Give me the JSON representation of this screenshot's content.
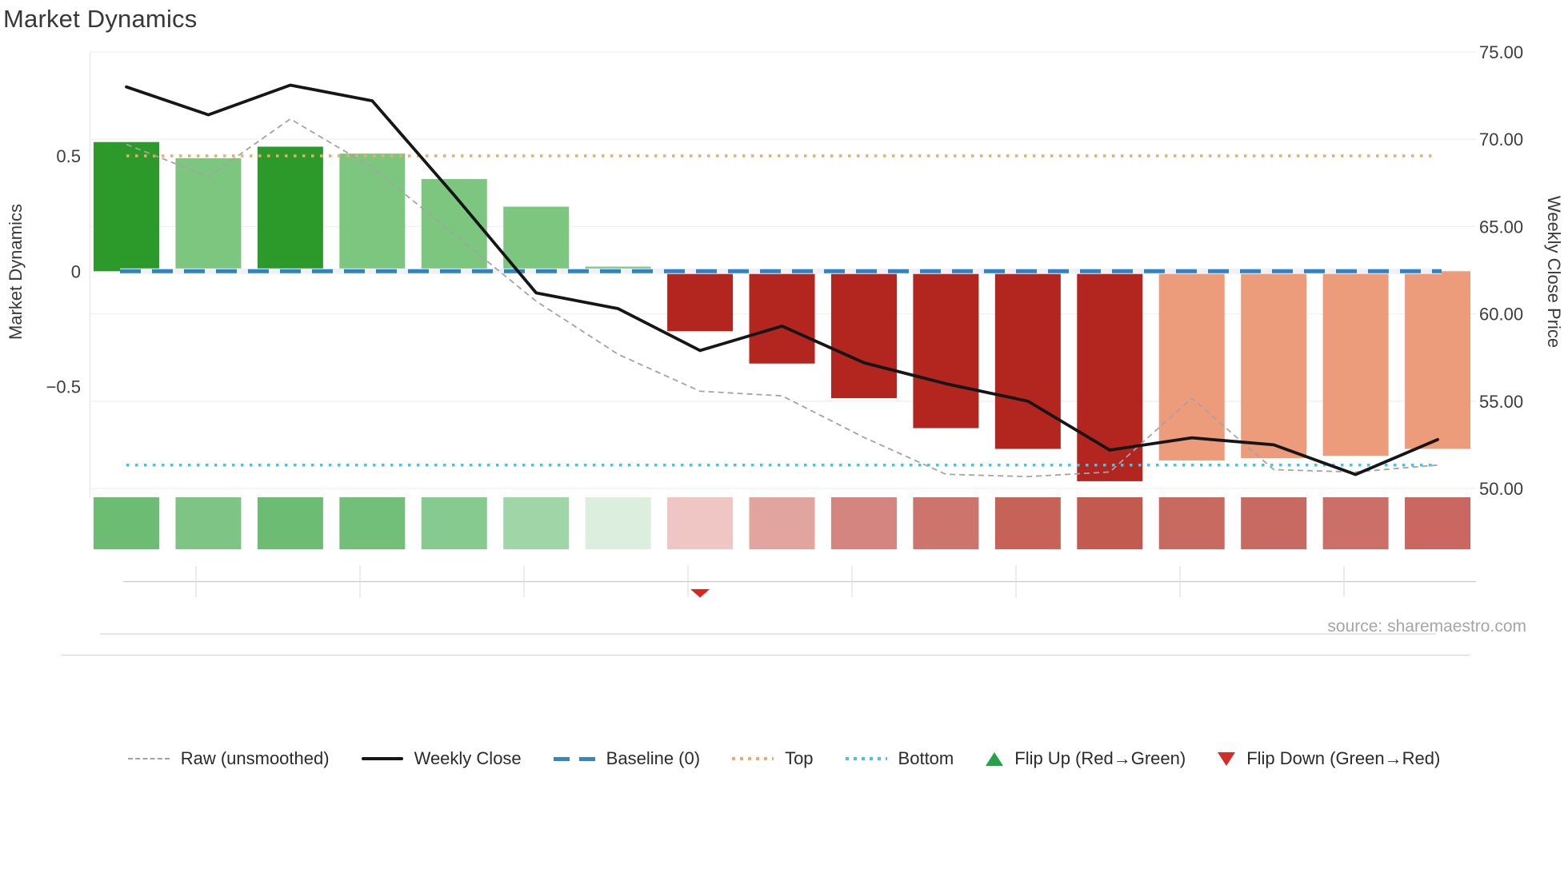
{
  "title": "Market Dynamics",
  "source": "source: sharemaestro.com",
  "axes": {
    "left": {
      "title": "Market Dynamics",
      "ticks": [
        {
          "label": "0.5",
          "value": 0.5
        },
        {
          "label": "0",
          "value": 0
        },
        {
          "label": "−0.5",
          "value": -0.5
        }
      ]
    },
    "right": {
      "title": "Weekly Close Price",
      "ticks": [
        {
          "label": "75.00",
          "value": 75
        },
        {
          "label": "70.00",
          "value": 70
        },
        {
          "label": "65.00",
          "value": 65
        },
        {
          "label": "60.00",
          "value": 60
        },
        {
          "label": "55.00",
          "value": 55
        },
        {
          "label": "50.00",
          "value": 50
        }
      ]
    }
  },
  "chart_data": {
    "type": "bar",
    "subtype": "bar-line combo with dual y-axes, heatmap strip and event markers",
    "x": [
      1,
      2,
      3,
      4,
      5,
      6,
      7,
      8,
      9,
      10,
      11,
      12,
      13,
      14,
      15,
      16,
      17
    ],
    "x_labels": [],
    "title": "Market Dynamics",
    "xlabel": "",
    "ylabel_left": "Market Dynamics",
    "ylabel_right": "Weekly Close Price",
    "left_ylim": [
      -0.95,
      0.95
    ],
    "right_ylim": [
      49.8,
      75.2
    ],
    "grid": "faint horizontal lines at right-axis ticks",
    "legend_position": "bottom",
    "bars": {
      "name": "Market Dynamics (bars)",
      "axis": "left",
      "values": [
        0.56,
        0.49,
        0.54,
        0.51,
        0.4,
        0.28,
        0.02,
        -0.26,
        -0.4,
        -0.55,
        -0.68,
        -0.77,
        -0.91,
        -0.82,
        -0.81,
        -0.8,
        -0.77
      ],
      "tones": [
        "dark-green",
        "light-green",
        "dark-green",
        "light-green",
        "light-green",
        "light-green",
        "light-green",
        "dark-red",
        "dark-red",
        "dark-red",
        "dark-red",
        "dark-red",
        "dark-red",
        "salmon",
        "salmon",
        "salmon",
        "salmon"
      ]
    },
    "series": [
      {
        "name": "Raw (unsmoothed)",
        "axis": "left",
        "style": "gray dashed",
        "values": [
          0.55,
          0.41,
          0.66,
          0.45,
          0.16,
          -0.13,
          -0.36,
          -0.52,
          -0.54,
          -0.72,
          -0.88,
          -0.89,
          -0.87,
          -0.55,
          -0.86,
          -0.87,
          -0.84
        ]
      },
      {
        "name": "Weekly Close",
        "axis": "right",
        "style": "black solid",
        "values": [
          73.0,
          71.4,
          73.1,
          72.2,
          66.8,
          61.2,
          60.3,
          57.9,
          59.3,
          57.2,
          56.0,
          55.0,
          52.2,
          52.9,
          52.5,
          50.8,
          52.8
        ]
      }
    ],
    "reference_lines": [
      {
        "name": "Baseline (0)",
        "axis": "left",
        "value": 0,
        "style": "blue long dashes"
      },
      {
        "name": "Top",
        "axis": "left",
        "value": 0.5,
        "style": "orange dots"
      },
      {
        "name": "Bottom",
        "axis": "left",
        "value": -0.84,
        "style": "cyan dots"
      }
    ],
    "heatmap_colors": [
      "#6cbc74",
      "#7dc485",
      "#6cbc74",
      "#72bf7a",
      "#87ca8f",
      "#a0d5a7",
      "#dcefde",
      "#efc6c3",
      "#e2a49f",
      "#d5857f",
      "#cd746d",
      "#c76258",
      "#c25a50",
      "#c96a60",
      "#c96a62",
      "#cb6f68",
      "#c96760"
    ],
    "markers": [
      {
        "type": "flip-down",
        "x_index": 7,
        "meaning": "Flip Down (Green→Red) at week 8"
      }
    ]
  },
  "legend": {
    "items": [
      {
        "label": "Raw (unsmoothed)",
        "swatch": "dashed-gray"
      },
      {
        "label": "Weekly Close",
        "swatch": "solid-black"
      },
      {
        "label": "Baseline (0)",
        "swatch": "dashes-blue"
      },
      {
        "label": "Top",
        "swatch": "dots-orange"
      },
      {
        "label": "Bottom",
        "swatch": "dots-cyan"
      },
      {
        "label": "Flip Up (Red→Green)",
        "swatch": "triangle-up-green"
      },
      {
        "label": "Flip Down (Green→Red)",
        "swatch": "triangle-down-red"
      }
    ]
  },
  "colors": {
    "bar_tones": {
      "dark-green": "#2b9a2b",
      "light-green": "#7dc67f",
      "dark-red": "#b2261f",
      "salmon": "#ec9c7a"
    },
    "close_line": "#161616",
    "raw_line": "#a3a3a3",
    "baseline": "#2e83c5",
    "top_line": "#f2aa66",
    "bottom_line": "#41c5e8",
    "flip_up": "#27a347",
    "flip_down": "#d4281f",
    "grid": "#f1f1f4",
    "spine": "#e9e9ee",
    "mini_axis": "#c9c9ce",
    "mini_tick": "#e0e0e5",
    "rule": "#d8d8dc",
    "tick_text": "#3d3d3d"
  }
}
